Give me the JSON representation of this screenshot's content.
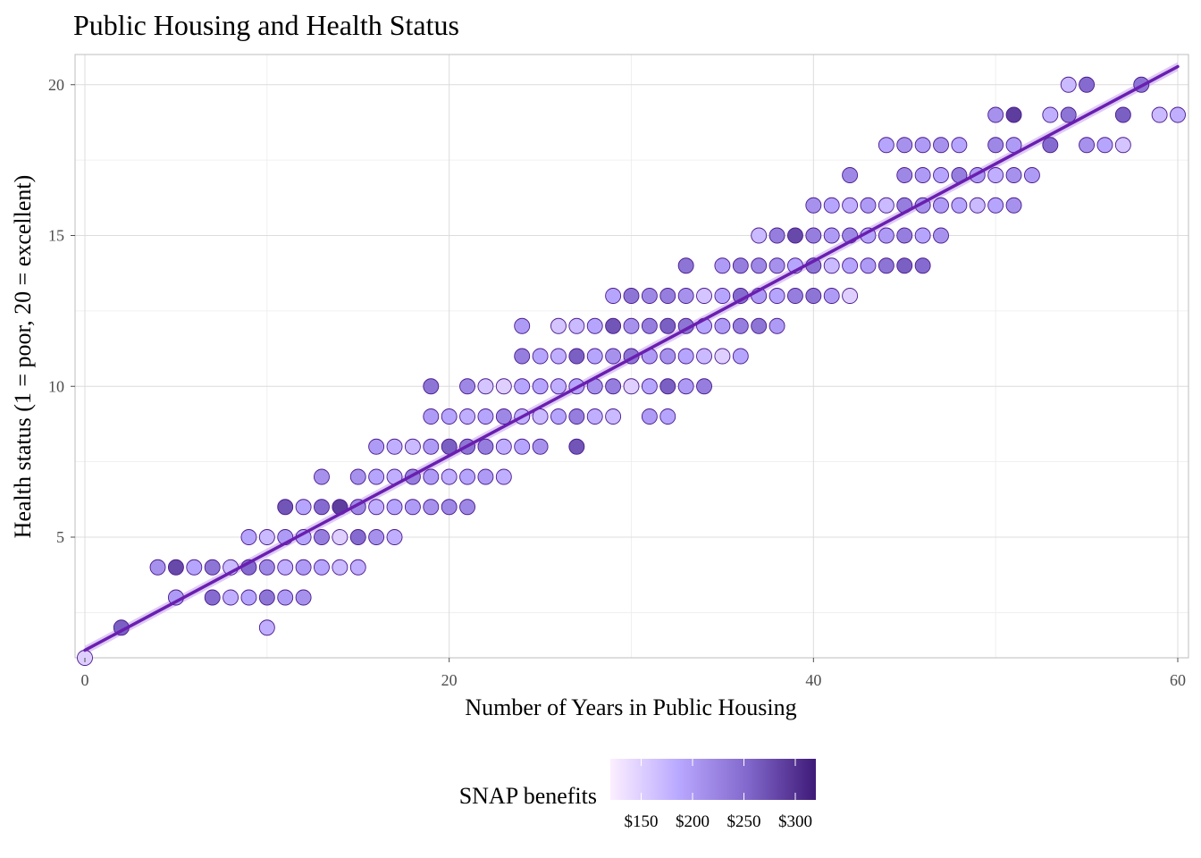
{
  "chart_data": {
    "type": "scatter",
    "title": "Public Housing and Health Status",
    "xlabel": "Number of Years in Public Housing",
    "ylabel": "Health status (1 = poor, 20 = excellent)",
    "xlim": [
      0,
      60
    ],
    "ylim": [
      1,
      21
    ],
    "x_ticks": [
      0,
      20,
      40,
      60
    ],
    "y_ticks": [
      5,
      10,
      15,
      20
    ],
    "grid": true,
    "legend": {
      "title": "SNAP benefits",
      "position": "bottom",
      "labels": [
        "$150",
        "$200",
        "$250",
        "$300"
      ],
      "values": [
        150,
        200,
        250,
        300
      ],
      "range": [
        120,
        320
      ],
      "colors": [
        "#fcefff",
        "#b9a8ff",
        "#8268cc",
        "#3f1a78"
      ]
    },
    "fit_line": {
      "x": [
        0,
        60
      ],
      "y": [
        1.25,
        20.6
      ],
      "color": "#6a1fb0",
      "band_color": "#c9a6f0"
    },
    "point_stroke": "#4b1a8c",
    "points": [
      [
        0,
        1,
        150
      ],
      [
        2,
        2,
        260
      ],
      [
        4,
        4,
        210
      ],
      [
        5,
        4,
        280
      ],
      [
        6,
        4,
        190
      ],
      [
        7,
        4,
        240
      ],
      [
        8,
        4,
        170
      ],
      [
        9,
        4,
        250
      ],
      [
        10,
        4,
        220
      ],
      [
        11,
        4,
        180
      ],
      [
        12,
        4,
        200
      ],
      [
        13,
        4,
        190
      ],
      [
        14,
        4,
        170
      ],
      [
        15,
        4,
        180
      ],
      [
        5,
        3,
        200
      ],
      [
        7,
        3,
        250
      ],
      [
        8,
        3,
        180
      ],
      [
        9,
        3,
        190
      ],
      [
        10,
        3,
        240
      ],
      [
        11,
        3,
        200
      ],
      [
        12,
        3,
        210
      ],
      [
        10,
        2,
        180
      ],
      [
        9,
        5,
        190
      ],
      [
        10,
        5,
        170
      ],
      [
        11,
        5,
        200
      ],
      [
        12,
        5,
        190
      ],
      [
        13,
        5,
        230
      ],
      [
        14,
        5,
        150
      ],
      [
        15,
        5,
        250
      ],
      [
        16,
        5,
        210
      ],
      [
        17,
        5,
        180
      ],
      [
        11,
        6,
        270
      ],
      [
        12,
        6,
        190
      ],
      [
        13,
        6,
        250
      ],
      [
        14,
        6,
        290
      ],
      [
        15,
        6,
        220
      ],
      [
        16,
        6,
        180
      ],
      [
        17,
        6,
        190
      ],
      [
        18,
        6,
        200
      ],
      [
        19,
        6,
        210
      ],
      [
        20,
        6,
        220
      ],
      [
        21,
        6,
        220
      ],
      [
        13,
        7,
        210
      ],
      [
        15,
        7,
        210
      ],
      [
        16,
        7,
        190
      ],
      [
        17,
        7,
        180
      ],
      [
        18,
        7,
        230
      ],
      [
        19,
        7,
        200
      ],
      [
        20,
        7,
        180
      ],
      [
        21,
        7,
        190
      ],
      [
        22,
        7,
        200
      ],
      [
        23,
        7,
        180
      ],
      [
        16,
        8,
        200
      ],
      [
        17,
        8,
        180
      ],
      [
        18,
        8,
        170
      ],
      [
        19,
        8,
        200
      ],
      [
        20,
        8,
        260
      ],
      [
        21,
        8,
        240
      ],
      [
        22,
        8,
        230
      ],
      [
        23,
        8,
        180
      ],
      [
        24,
        8,
        190
      ],
      [
        25,
        8,
        210
      ],
      [
        27,
        8,
        270
      ],
      [
        19,
        9,
        200
      ],
      [
        20,
        9,
        190
      ],
      [
        21,
        9,
        180
      ],
      [
        22,
        9,
        190
      ],
      [
        23,
        9,
        220
      ],
      [
        24,
        9,
        180
      ],
      [
        25,
        9,
        170
      ],
      [
        26,
        9,
        190
      ],
      [
        27,
        9,
        230
      ],
      [
        28,
        9,
        180
      ],
      [
        29,
        9,
        170
      ],
      [
        31,
        9,
        200
      ],
      [
        32,
        9,
        190
      ],
      [
        19,
        10,
        240
      ],
      [
        21,
        10,
        220
      ],
      [
        22,
        10,
        160
      ],
      [
        23,
        10,
        150
      ],
      [
        24,
        10,
        190
      ],
      [
        25,
        10,
        190
      ],
      [
        26,
        10,
        180
      ],
      [
        27,
        10,
        190
      ],
      [
        28,
        10,
        210
      ],
      [
        29,
        10,
        230
      ],
      [
        30,
        10,
        150
      ],
      [
        31,
        10,
        190
      ],
      [
        32,
        10,
        260
      ],
      [
        33,
        10,
        200
      ],
      [
        34,
        10,
        230
      ],
      [
        24,
        11,
        230
      ],
      [
        25,
        11,
        190
      ],
      [
        26,
        11,
        180
      ],
      [
        27,
        11,
        260
      ],
      [
        28,
        11,
        190
      ],
      [
        29,
        11,
        210
      ],
      [
        30,
        11,
        240
      ],
      [
        31,
        11,
        200
      ],
      [
        32,
        11,
        210
      ],
      [
        33,
        11,
        190
      ],
      [
        34,
        11,
        170
      ],
      [
        35,
        11,
        150
      ],
      [
        36,
        11,
        190
      ],
      [
        24,
        12,
        200
      ],
      [
        26,
        12,
        160
      ],
      [
        27,
        12,
        170
      ],
      [
        28,
        12,
        190
      ],
      [
        29,
        12,
        270
      ],
      [
        30,
        12,
        210
      ],
      [
        31,
        12,
        230
      ],
      [
        32,
        12,
        260
      ],
      [
        33,
        12,
        240
      ],
      [
        34,
        12,
        190
      ],
      [
        35,
        12,
        200
      ],
      [
        36,
        12,
        230
      ],
      [
        37,
        12,
        240
      ],
      [
        38,
        12,
        200
      ],
      [
        29,
        13,
        190
      ],
      [
        30,
        13,
        240
      ],
      [
        31,
        13,
        220
      ],
      [
        32,
        13,
        230
      ],
      [
        33,
        13,
        210
      ],
      [
        34,
        13,
        160
      ],
      [
        35,
        13,
        190
      ],
      [
        36,
        13,
        250
      ],
      [
        37,
        13,
        200
      ],
      [
        38,
        13,
        190
      ],
      [
        39,
        13,
        230
      ],
      [
        40,
        13,
        240
      ],
      [
        41,
        13,
        200
      ],
      [
        42,
        13,
        150
      ],
      [
        33,
        14,
        240
      ],
      [
        35,
        14,
        200
      ],
      [
        36,
        14,
        230
      ],
      [
        37,
        14,
        220
      ],
      [
        38,
        14,
        210
      ],
      [
        39,
        14,
        190
      ],
      [
        40,
        14,
        240
      ],
      [
        41,
        14,
        170
      ],
      [
        42,
        14,
        190
      ],
      [
        43,
        14,
        200
      ],
      [
        44,
        14,
        240
      ],
      [
        45,
        14,
        260
      ],
      [
        46,
        14,
        250
      ],
      [
        37,
        15,
        170
      ],
      [
        38,
        15,
        230
      ],
      [
        39,
        15,
        280
      ],
      [
        40,
        15,
        230
      ],
      [
        41,
        15,
        200
      ],
      [
        42,
        15,
        220
      ],
      [
        43,
        15,
        190
      ],
      [
        44,
        15,
        200
      ],
      [
        45,
        15,
        230
      ],
      [
        46,
        15,
        190
      ],
      [
        47,
        15,
        210
      ],
      [
        40,
        16,
        210
      ],
      [
        41,
        16,
        190
      ],
      [
        42,
        16,
        180
      ],
      [
        43,
        16,
        200
      ],
      [
        44,
        16,
        170
      ],
      [
        45,
        16,
        230
      ],
      [
        46,
        16,
        210
      ],
      [
        47,
        16,
        200
      ],
      [
        48,
        16,
        190
      ],
      [
        49,
        16,
        170
      ],
      [
        50,
        16,
        190
      ],
      [
        51,
        16,
        210
      ],
      [
        42,
        17,
        220
      ],
      [
        45,
        17,
        220
      ],
      [
        46,
        17,
        200
      ],
      [
        47,
        17,
        190
      ],
      [
        48,
        17,
        230
      ],
      [
        49,
        17,
        200
      ],
      [
        50,
        17,
        180
      ],
      [
        51,
        17,
        210
      ],
      [
        52,
        17,
        200
      ],
      [
        44,
        18,
        190
      ],
      [
        45,
        18,
        210
      ],
      [
        46,
        18,
        200
      ],
      [
        47,
        18,
        210
      ],
      [
        48,
        18,
        190
      ],
      [
        50,
        18,
        220
      ],
      [
        51,
        18,
        200
      ],
      [
        53,
        18,
        250
      ],
      [
        55,
        18,
        210
      ],
      [
        56,
        18,
        190
      ],
      [
        57,
        18,
        160
      ],
      [
        50,
        19,
        210
      ],
      [
        51,
        19,
        290
      ],
      [
        53,
        19,
        180
      ],
      [
        54,
        19,
        240
      ],
      [
        57,
        19,
        260
      ],
      [
        59,
        19,
        170
      ],
      [
        60,
        19,
        180
      ],
      [
        54,
        20,
        170
      ],
      [
        55,
        20,
        250
      ],
      [
        58,
        20,
        240
      ]
    ]
  }
}
